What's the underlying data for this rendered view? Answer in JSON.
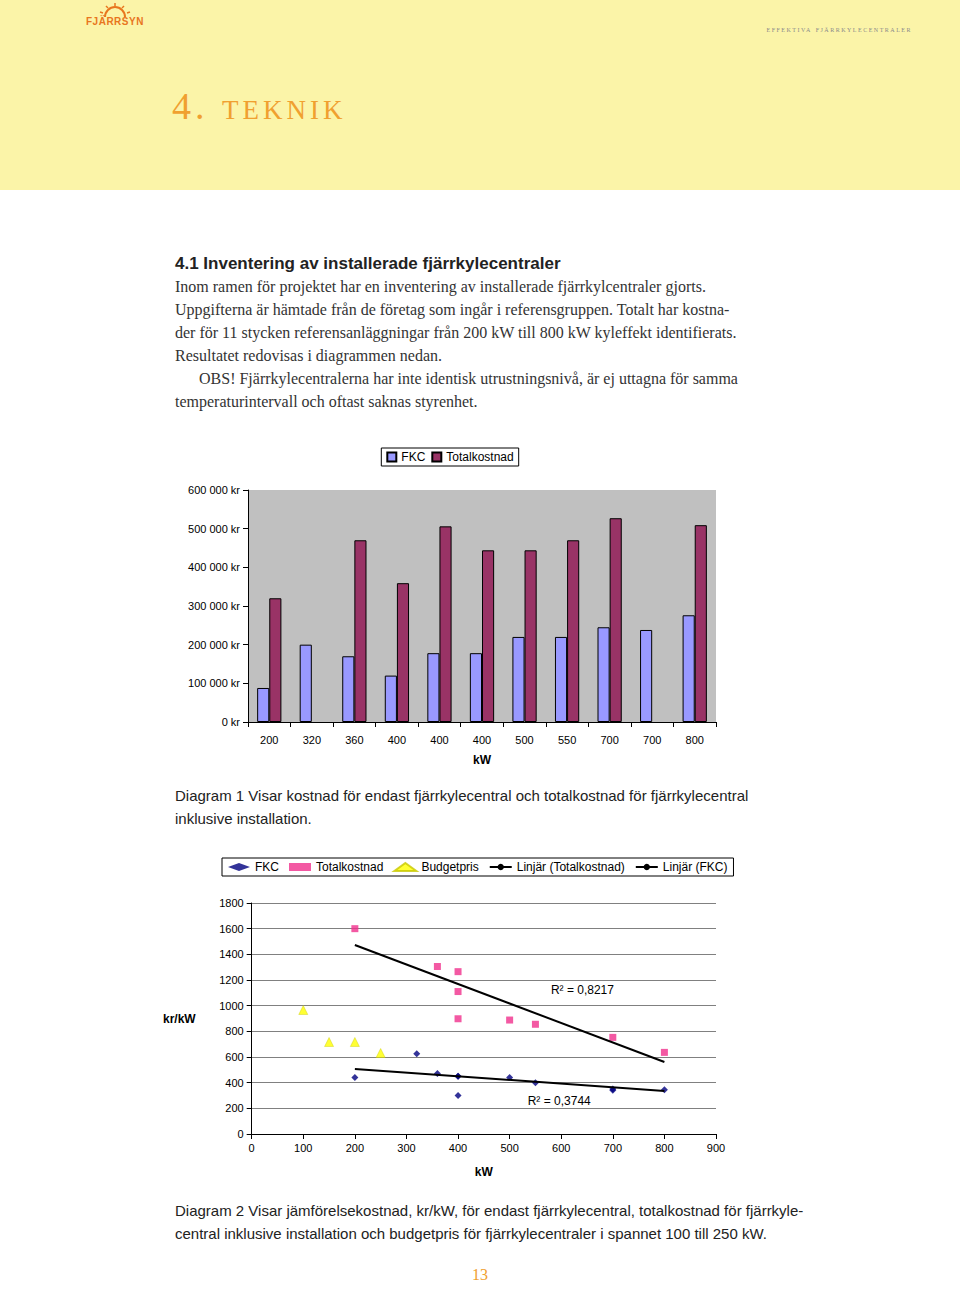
{
  "header": {
    "logo": "FJÄRRSYN",
    "running_title": "effektiva fjärrkylecentraler"
  },
  "chapter_title": "4. teknik",
  "section": {
    "heading": "4.1 Inventering av installerade fjärrkylecentraler",
    "paragraphs": [
      [
        "Inom ramen för projektet har en inventering av installerade fjärrkylcentraler gjorts.",
        "Uppgifterna är hämtade från de företag som ingår i referensgruppen. Totalt har kostna-",
        "der för 11 stycken referensanläggningar från 200 kW till 800 kW kyleffekt identifierats.",
        "Resultatet redovisas i diagrammen nedan."
      ],
      [
        "OBS! Fjärrkylecentralerna har inte identisk utrustningsnivå, är ej uttagna för samma",
        "temperaturintervall och oftast saknas styrenhet."
      ]
    ]
  },
  "chart_data": [
    {
      "type": "bar",
      "xlabel": "kW",
      "categories": [
        "200",
        "320",
        "360",
        "400",
        "400",
        "400",
        "500",
        "550",
        "700",
        "700",
        "800"
      ],
      "series": [
        {
          "name": "FKC",
          "color": "#9999ff",
          "values": [
            88000,
            200000,
            170000,
            120000,
            178000,
            178000,
            220000,
            220000,
            245000,
            238000,
            276000
          ]
        },
        {
          "name": "Totalkostnad",
          "color": "#993366",
          "values": [
            320000,
            null,
            470000,
            359000,
            506000,
            444000,
            444000,
            470000,
            527000,
            null,
            509000
          ]
        }
      ],
      "ylim": [
        0,
        600000
      ],
      "yticks": [
        {
          "value": 0,
          "label": "0 kr"
        },
        {
          "value": 100000,
          "label": "100 000 kr"
        },
        {
          "value": 200000,
          "label": "200 000 kr"
        },
        {
          "value": 300000,
          "label": "300 000 kr"
        },
        {
          "value": 400000,
          "label": "400 000 kr"
        },
        {
          "value": 500000,
          "label": "500 000 kr"
        },
        {
          "value": 600000,
          "label": "600 000 kr"
        }
      ],
      "grid": false,
      "legend": "top"
    },
    {
      "type": "scatter",
      "xlabel": "kW",
      "ylabel": "kr/kW",
      "series": [
        {
          "name": "FKC",
          "type": "scatter",
          "marker": "diamond",
          "color": "#000080",
          "x": [
            200,
            320,
            360,
            400,
            400,
            400,
            500,
            550,
            700,
            700,
            800
          ],
          "values": [
            440,
            625,
            472,
            300,
            450,
            450,
            440,
            400,
            350,
            340,
            345
          ]
        },
        {
          "name": "Totalkostnad",
          "type": "scatter",
          "marker": "square",
          "color": "#f0308c",
          "x": [
            200,
            360,
            400,
            400,
            400,
            500,
            550,
            700,
            800
          ],
          "values": [
            1600,
            1305,
            1265,
            1110,
            898,
            888,
            855,
            753,
            636
          ]
        },
        {
          "name": "Budgetpris",
          "type": "scatter",
          "marker": "triangle",
          "color": "#ffff00",
          "x": [
            100,
            150,
            200,
            250
          ],
          "values": [
            966,
            717,
            717,
            631
          ]
        },
        {
          "name": "Linjär (Totalkostnad)",
          "type": "line",
          "color": "#000000",
          "x": [
            200,
            800
          ],
          "values": [
            1473,
            561
          ]
        },
        {
          "name": "Linjär (FKC)",
          "type": "line",
          "color": "#000000",
          "x": [
            200,
            800
          ],
          "values": [
            507,
            335
          ]
        }
      ],
      "annotations": [
        {
          "text": "R² = 0,8217",
          "x": 580,
          "y": 1120
        },
        {
          "text": "R² = 0,3744",
          "x": 535,
          "y": 260
        }
      ],
      "xlim": [
        0,
        900
      ],
      "xticks": [
        0,
        100,
        200,
        300,
        400,
        500,
        600,
        700,
        800,
        900
      ],
      "ylim": [
        0,
        1800
      ],
      "yticks": [
        0,
        200,
        400,
        600,
        800,
        1000,
        1200,
        1400,
        1600,
        1800
      ],
      "grid": true,
      "legend": "top"
    }
  ],
  "captions": [
    [
      "Diagram 1 Visar kostnad för endast fjärrkylecentral och totalkostnad för fjärrkylecentral",
      "inklusive installation."
    ],
    [
      "Diagram 2 Visar jämförelsekostnad, kr/kW, för endast fjärrkylecentral, totalkostnad för fjärrkyle-",
      "central inklusive installation och budgetpris för fjärrkylecentraler i spannet 100 till 250 kW."
    ]
  ],
  "page_number": 13
}
